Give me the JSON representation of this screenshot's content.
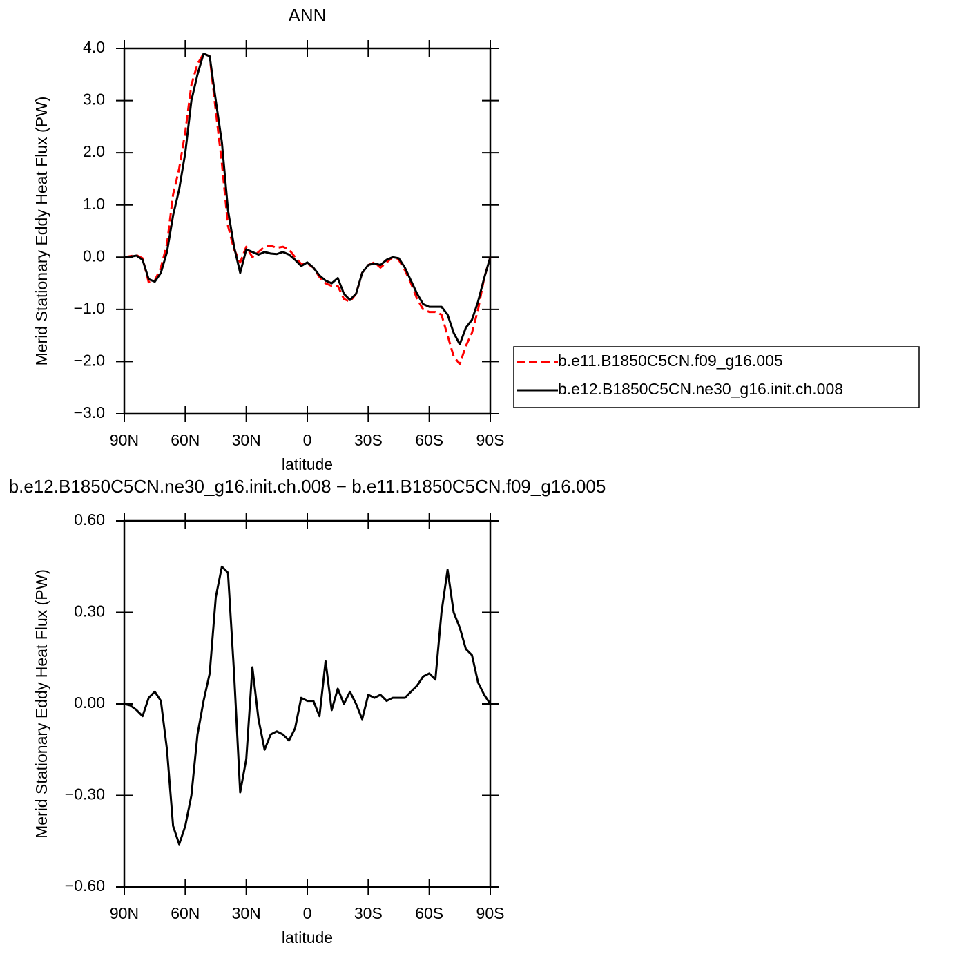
{
  "chart_data": [
    {
      "type": "line",
      "title": "ANN",
      "xlabel": "latitude",
      "ylabel": "Merid Stationary Eddy Heat Flux (PW)",
      "x": [
        90,
        87,
        84,
        81,
        78,
        75,
        72,
        69,
        66,
        63,
        60,
        57,
        54,
        51,
        48,
        45,
        42,
        39,
        36,
        33,
        30,
        27,
        24,
        21,
        18,
        15,
        12,
        9,
        6,
        3,
        0,
        -3,
        -6,
        -9,
        -12,
        -15,
        -18,
        -21,
        -24,
        -27,
        -30,
        -33,
        -36,
        -39,
        -42,
        -45,
        -48,
        -51,
        -54,
        -57,
        -60,
        -63,
        -66,
        -69,
        -72,
        -75,
        -78,
        -81,
        -84,
        -87,
        -90
      ],
      "xlim": [
        90,
        -90
      ],
      "xticks": [
        {
          "value": 90,
          "label": "90N"
        },
        {
          "value": 60,
          "label": "60N"
        },
        {
          "value": 30,
          "label": "30N"
        },
        0,
        {
          "value": -30,
          "label": "30S"
        },
        {
          "value": -60,
          "label": "60S"
        },
        {
          "value": -90,
          "label": "90S"
        }
      ],
      "ylim": [
        -3,
        4
      ],
      "yticks": [
        {
          "value": 4,
          "label": "4.0"
        },
        {
          "value": 3,
          "label": "3.0"
        },
        {
          "value": 2,
          "label": "2.0"
        },
        {
          "value": 1,
          "label": "1.0"
        },
        {
          "value": 0,
          "label": "0.0"
        },
        {
          "value": -1,
          "label": "−1.0"
        },
        {
          "value": -2,
          "label": "−2.0"
        },
        {
          "value": -3,
          "label": "−3.0"
        }
      ],
      "series": [
        {
          "name": "b.e11.B1850C5CN.f09_g16.005",
          "color": "#ff0000",
          "dashed": true,
          "values": [
            0,
            0.02,
            0.04,
            -0.02,
            -0.48,
            -0.45,
            -0.2,
            0.25,
            1.2,
            1.7,
            2.4,
            3.3,
            3.7,
            3.9,
            3.85,
            2.8,
            1.8,
            0.6,
            0.15,
            -0.1,
            0.2,
            0.0,
            0.1,
            0.2,
            0.22,
            0.18,
            0.2,
            0.15,
            0.0,
            -0.13,
            -0.12,
            -0.2,
            -0.38,
            -0.5,
            -0.55,
            -0.55,
            -0.8,
            -0.85,
            -0.7,
            -0.3,
            -0.15,
            -0.1,
            -0.2,
            -0.1,
            0.0,
            -0.05,
            -0.25,
            -0.5,
            -0.8,
            -1.0,
            -1.05,
            -1.05,
            -1.1,
            -1.5,
            -1.9,
            -2.05,
            -1.7,
            -1.45,
            -1.0,
            -0.4,
            0
          ]
        },
        {
          "name": "b.e12.B1850C5CN.ne30_g16.init.ch.008",
          "color": "#000000",
          "dashed": false,
          "values": [
            0,
            0.01,
            0.03,
            -0.05,
            -0.42,
            -0.47,
            -0.3,
            0.1,
            0.8,
            1.3,
            2.0,
            3.0,
            3.5,
            3.9,
            3.85,
            3.0,
            2.2,
            0.9,
            0.2,
            -0.3,
            0.15,
            0.1,
            0.05,
            0.1,
            0.07,
            0.06,
            0.1,
            0.05,
            -0.05,
            -0.17,
            -0.1,
            -0.2,
            -0.35,
            -0.45,
            -0.5,
            -0.4,
            -0.7,
            -0.82,
            -0.7,
            -0.3,
            -0.15,
            -0.12,
            -0.15,
            -0.05,
            0.0,
            -0.02,
            -0.2,
            -0.45,
            -0.7,
            -0.9,
            -0.95,
            -0.95,
            -0.95,
            -1.1,
            -1.45,
            -1.67,
            -1.35,
            -1.2,
            -0.85,
            -0.4,
            0
          ]
        }
      ]
    },
    {
      "type": "line",
      "title": "b.e12.B1850C5CN.ne30_g16.init.ch.008 − b.e11.B1850C5CN.f09_g16.005",
      "xlabel": "latitude",
      "ylabel": "Merid Stationary Eddy Heat Flux (PW)",
      "x": [
        90,
        87,
        84,
        81,
        78,
        75,
        72,
        69,
        66,
        63,
        60,
        57,
        54,
        51,
        48,
        45,
        42,
        39,
        36,
        33,
        30,
        27,
        24,
        21,
        18,
        15,
        12,
        9,
        6,
        3,
        0,
        -3,
        -6,
        -9,
        -12,
        -15,
        -18,
        -21,
        -24,
        -27,
        -30,
        -33,
        -36,
        -39,
        -42,
        -45,
        -48,
        -51,
        -54,
        -57,
        -60,
        -63,
        -66,
        -69,
        -72,
        -75,
        -78,
        -81,
        -84,
        -87,
        -90
      ],
      "xlim": [
        90,
        -90
      ],
      "xticks": [
        {
          "value": 90,
          "label": "90N"
        },
        {
          "value": 60,
          "label": "60N"
        },
        {
          "value": 30,
          "label": "30N"
        },
        0,
        {
          "value": -30,
          "label": "30S"
        },
        {
          "value": -60,
          "label": "60S"
        },
        {
          "value": -90,
          "label": "90S"
        }
      ],
      "ylim": [
        -0.6,
        0.6
      ],
      "yticks": [
        {
          "value": 0.6,
          "label": "0.60"
        },
        {
          "value": 0.3,
          "label": "0.30"
        },
        {
          "value": 0,
          "label": "0.00"
        },
        {
          "value": -0.3,
          "label": "−0.30"
        },
        {
          "value": -0.6,
          "label": "−0.60"
        }
      ],
      "color": "#000000",
      "values": [
        0,
        -0.005,
        -0.02,
        -0.04,
        0.02,
        0.04,
        0.01,
        -0.15,
        -0.4,
        -0.46,
        -0.4,
        -0.3,
        -0.1,
        0.01,
        0.1,
        0.35,
        0.45,
        0.43,
        0.1,
        -0.29,
        -0.18,
        0.12,
        -0.05,
        -0.15,
        -0.1,
        -0.09,
        -0.1,
        -0.12,
        -0.08,
        0.02,
        0.01,
        0.01,
        -0.04,
        0.14,
        -0.02,
        0.05,
        0.0,
        0.04,
        0.0,
        -0.05,
        0.03,
        0.02,
        0.03,
        0.01,
        0.02,
        0.02,
        0.02,
        0.04,
        0.06,
        0.09,
        0.1,
        0.08,
        0.3,
        0.44,
        0.3,
        0.25,
        0.18,
        0.16,
        0.07,
        0.03,
        0
      ]
    }
  ]
}
